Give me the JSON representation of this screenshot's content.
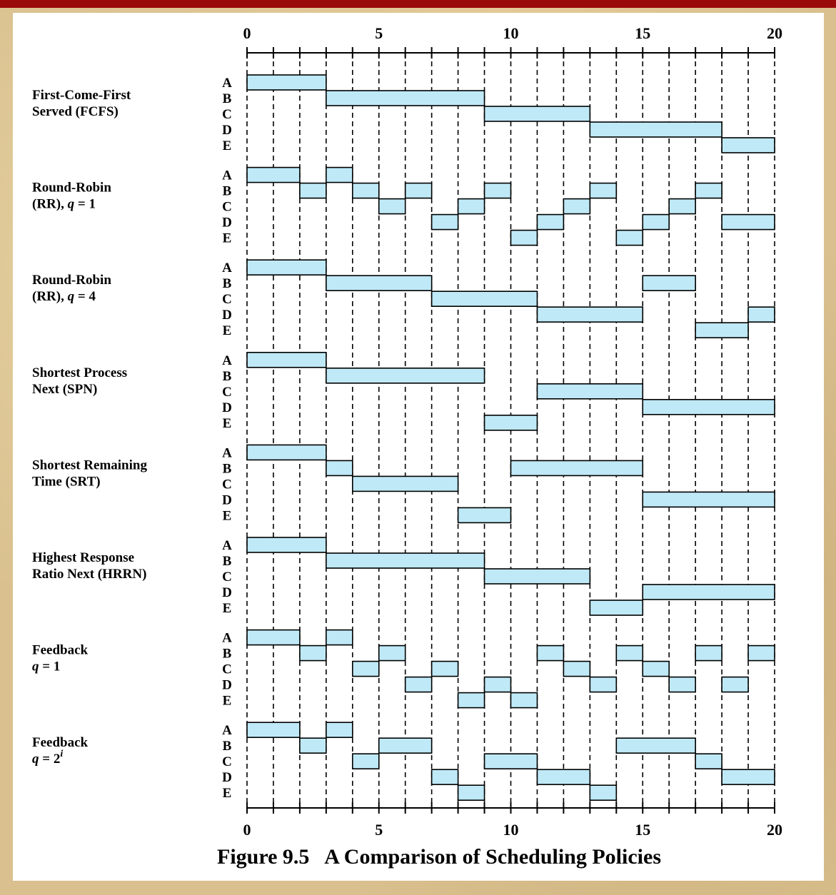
{
  "chart_data": {
    "type": "gantt",
    "title": "Figure 9.5   A Comparison of Scheduling Policies",
    "xlim": [
      0,
      20
    ],
    "x_tick_labels": [
      "0",
      "5",
      "10",
      "15",
      "20"
    ],
    "x_tick_values": [
      0,
      5,
      10,
      15,
      20
    ],
    "processes": [
      "A",
      "B",
      "C",
      "D",
      "E"
    ],
    "colors": {
      "bar_fill": "#bfe9f6",
      "bar_stroke": "#000000",
      "top_bar": "#9b0a0a"
    },
    "policies": [
      {
        "label_lines": [
          "First-Come-First",
          "Served (FCFS)"
        ],
        "segments": {
          "A": [
            [
              0,
              3
            ]
          ],
          "B": [
            [
              3,
              9
            ]
          ],
          "C": [
            [
              9,
              13
            ]
          ],
          "D": [
            [
              13,
              18
            ]
          ],
          "E": [
            [
              18,
              20
            ]
          ]
        }
      },
      {
        "label_lines": [
          "Round-Robin",
          "(RR), q = 1"
        ],
        "segments": {
          "A": [
            [
              0,
              2
            ],
            [
              3,
              4
            ]
          ],
          "B": [
            [
              2,
              3
            ],
            [
              4,
              5
            ],
            [
              6,
              7
            ],
            [
              9,
              10
            ],
            [
              13,
              14
            ],
            [
              17,
              18
            ]
          ],
          "C": [
            [
              5,
              6
            ],
            [
              8,
              9
            ],
            [
              12,
              13
            ],
            [
              16,
              17
            ]
          ],
          "D": [
            [
              7,
              8
            ],
            [
              11,
              12
            ],
            [
              15,
              16
            ],
            [
              18,
              20
            ]
          ],
          "E": [
            [
              10,
              11
            ],
            [
              14,
              15
            ]
          ]
        }
      },
      {
        "label_lines": [
          "Round-Robin",
          "(RR), q = 4"
        ],
        "segments": {
          "A": [
            [
              0,
              3
            ]
          ],
          "B": [
            [
              3,
              7
            ],
            [
              15,
              17
            ]
          ],
          "C": [
            [
              7,
              11
            ]
          ],
          "D": [
            [
              11,
              15
            ],
            [
              19,
              20
            ]
          ],
          "E": [
            [
              17,
              19
            ]
          ]
        }
      },
      {
        "label_lines": [
          "Shortest Process",
          "Next (SPN)"
        ],
        "segments": {
          "A": [
            [
              0,
              3
            ]
          ],
          "B": [
            [
              3,
              9
            ]
          ],
          "C": [
            [
              11,
              15
            ]
          ],
          "D": [
            [
              15,
              20
            ]
          ],
          "E": [
            [
              9,
              11
            ]
          ]
        }
      },
      {
        "label_lines": [
          "Shortest Remaining",
          "Time (SRT)"
        ],
        "segments": {
          "A": [
            [
              0,
              3
            ]
          ],
          "B": [
            [
              3,
              4
            ],
            [
              10,
              15
            ]
          ],
          "C": [
            [
              4,
              8
            ]
          ],
          "D": [
            [
              15,
              20
            ]
          ],
          "E": [
            [
              8,
              10
            ]
          ]
        }
      },
      {
        "label_lines": [
          "Highest Response",
          "Ratio Next (HRRN)"
        ],
        "segments": {
          "A": [
            [
              0,
              3
            ]
          ],
          "B": [
            [
              3,
              9
            ]
          ],
          "C": [
            [
              9,
              13
            ]
          ],
          "D": [
            [
              15,
              20
            ]
          ],
          "E": [
            [
              13,
              15
            ]
          ]
        }
      },
      {
        "label_lines": [
          "Feedback",
          "q = 1"
        ],
        "segments": {
          "A": [
            [
              0,
              2
            ],
            [
              3,
              4
            ]
          ],
          "B": [
            [
              2,
              3
            ],
            [
              5,
              6
            ],
            [
              11,
              12
            ],
            [
              14,
              15
            ],
            [
              17,
              18
            ],
            [
              19,
              20
            ]
          ],
          "C": [
            [
              4,
              5
            ],
            [
              7,
              8
            ],
            [
              12,
              13
            ],
            [
              15,
              16
            ]
          ],
          "D": [
            [
              6,
              7
            ],
            [
              9,
              10
            ],
            [
              13,
              14
            ],
            [
              16,
              17
            ],
            [
              18,
              19
            ]
          ],
          "E": [
            [
              8,
              9
            ],
            [
              10,
              11
            ]
          ]
        }
      },
      {
        "label_lines": [
          "Feedback",
          "q = 2i"
        ],
        "segments": {
          "A": [
            [
              0,
              2
            ],
            [
              3,
              4
            ]
          ],
          "B": [
            [
              2,
              3
            ],
            [
              5,
              7
            ],
            [
              14,
              17
            ]
          ],
          "C": [
            [
              4,
              5
            ],
            [
              9,
              11
            ],
            [
              17,
              18
            ]
          ],
          "D": [
            [
              7,
              8
            ],
            [
              11,
              13
            ],
            [
              18,
              20
            ]
          ],
          "E": [
            [
              8,
              9
            ],
            [
              13,
              14
            ]
          ]
        }
      }
    ]
  }
}
